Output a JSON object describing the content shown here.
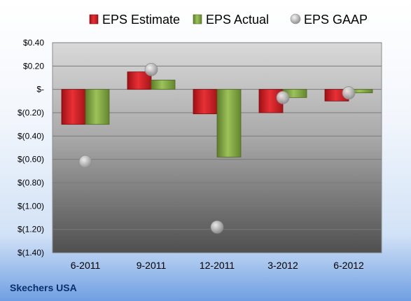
{
  "chart_data": {
    "type": "bar",
    "title": "",
    "xlabel": "",
    "ylabel": "",
    "categories": [
      "6-2011",
      "9-2011",
      "12-2011",
      "3-2012",
      "6-2012"
    ],
    "series": [
      {
        "name": "EPS Estimate",
        "mark": "bar",
        "color": "#e0282e",
        "values": [
          -0.3,
          0.15,
          -0.21,
          -0.2,
          -0.1
        ]
      },
      {
        "name": "EPS Actual",
        "mark": "bar",
        "color": "#8fb54a",
        "values": [
          -0.3,
          0.08,
          -0.58,
          -0.07,
          -0.03
        ]
      },
      {
        "name": "EPS GAAP",
        "mark": "point",
        "color": "#bdbdbd",
        "values": [
          -0.62,
          0.17,
          -1.18,
          -0.07,
          -0.03
        ]
      }
    ],
    "ylim": [
      -1.4,
      0.4
    ],
    "yticks": [
      0.4,
      0.2,
      0,
      -0.2,
      -0.4,
      -0.6,
      -0.8,
      -1.0,
      -1.2,
      -1.4
    ],
    "ytick_labels": [
      "$0.40",
      "$0.20",
      "$-",
      "$(0.20)",
      "$(0.40)",
      "$(0.60)",
      "$(0.80)",
      "$(1.00)",
      "$(1.20)",
      "$(1.40)"
    ],
    "grid": true,
    "legend": "top"
  },
  "footer": {
    "company": "Skechers USA"
  }
}
